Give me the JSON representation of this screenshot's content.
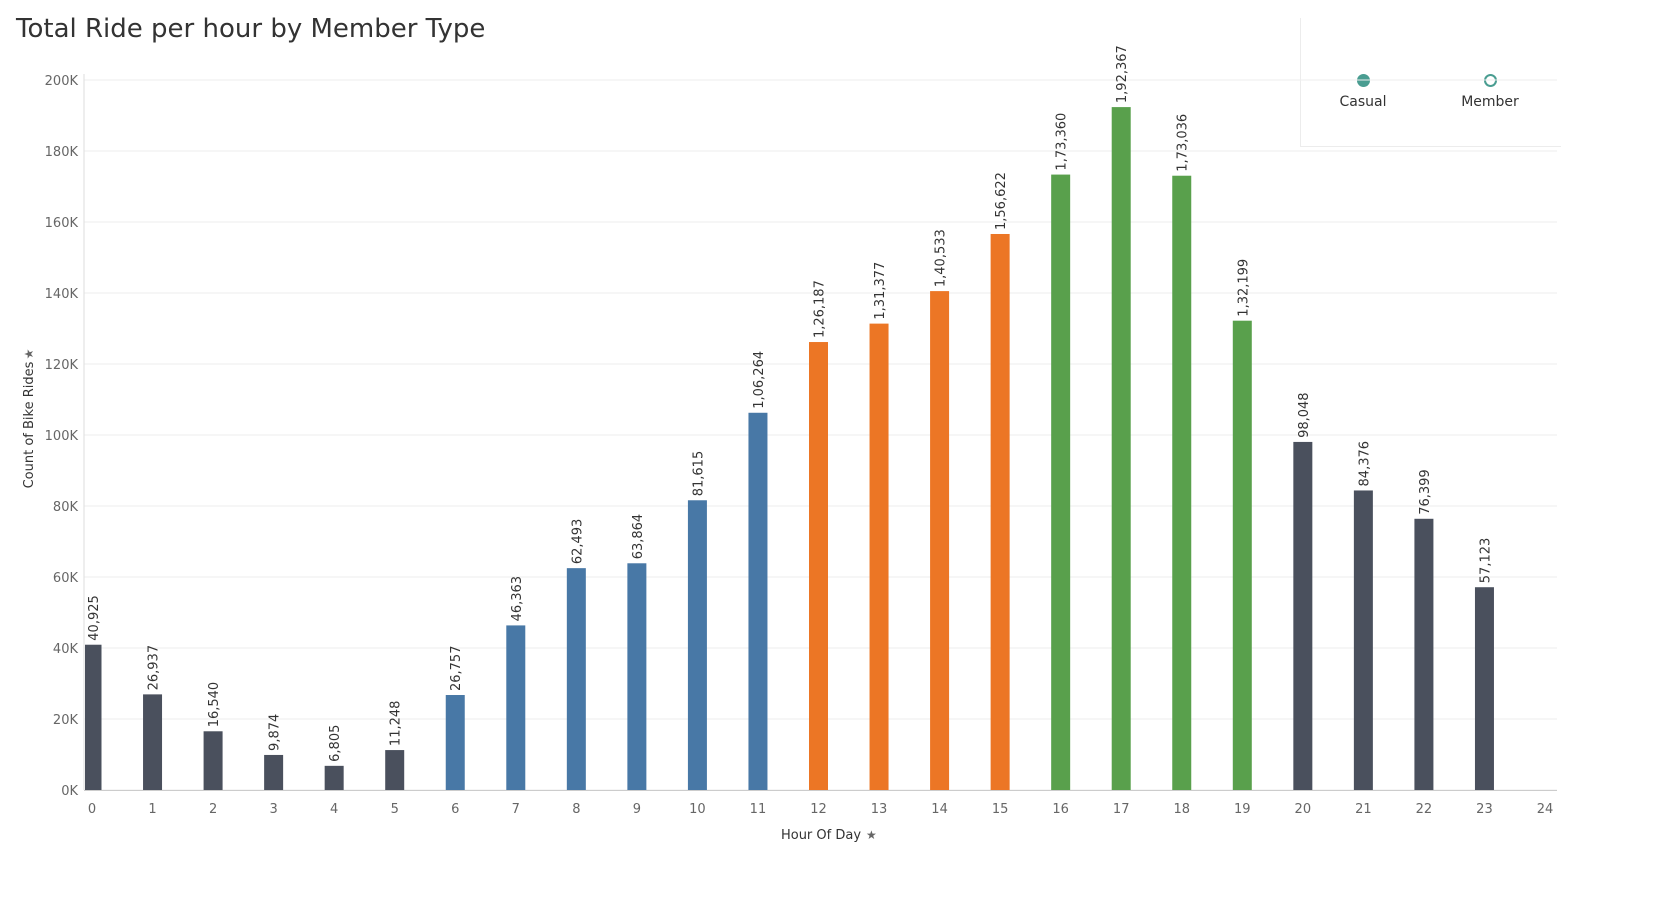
{
  "chart_data": {
    "type": "bar",
    "title": "Total Ride per hour by Member Type",
    "xlabel": "Hour Of Day",
    "ylabel": "Count of Bike Rides",
    "x": [
      0,
      1,
      2,
      3,
      4,
      5,
      6,
      7,
      8,
      9,
      10,
      11,
      12,
      13,
      14,
      15,
      16,
      17,
      18,
      19,
      20,
      21,
      22,
      23
    ],
    "values": [
      40925,
      26937,
      16540,
      9874,
      6805,
      11248,
      26757,
      46363,
      62493,
      63864,
      81615,
      106264,
      126187,
      131377,
      140533,
      156622,
      173360,
      192367,
      173036,
      132199,
      98048,
      84376,
      76399,
      57123
    ],
    "data_labels": [
      "40,925",
      "26,937",
      "16,540",
      "9,874",
      "6,805",
      "11,248",
      "26,757",
      "46,363",
      "62,493",
      "63,864",
      "81,615",
      "1,06,264",
      "1,26,187",
      "1,31,377",
      "1,40,533",
      "1,56,622",
      "1,73,360",
      "1,92,367",
      "1,73,036",
      "1,32,199",
      "98,048",
      "84,376",
      "76,399",
      "57,123"
    ],
    "bar_colors": [
      "#4a505d",
      "#4a505d",
      "#4a505d",
      "#4a505d",
      "#4a505d",
      "#4a505d",
      "#4878a6",
      "#4878a6",
      "#4878a6",
      "#4878a6",
      "#4878a6",
      "#4878a6",
      "#ec7625",
      "#ec7625",
      "#ec7625",
      "#ec7625",
      "#59a04c",
      "#59a04c",
      "#59a04c",
      "#59a04c",
      "#4a505d",
      "#4a505d",
      "#4a505d",
      "#4a505d"
    ],
    "x_ticks": [
      "0",
      "1",
      "2",
      "3",
      "4",
      "5",
      "6",
      "7",
      "8",
      "9",
      "10",
      "11",
      "12",
      "13",
      "14",
      "15",
      "16",
      "17",
      "18",
      "19",
      "20",
      "21",
      "22",
      "23",
      "24"
    ],
    "y_ticks": [
      0,
      20000,
      40000,
      60000,
      80000,
      100000,
      120000,
      140000,
      160000,
      180000,
      200000
    ],
    "y_tick_labels": [
      "0K",
      "20K",
      "40K",
      "60K",
      "80K",
      "100K",
      "120K",
      "140K",
      "160K",
      "180K",
      "200K"
    ],
    "xlim": [
      0,
      24
    ],
    "ylim": [
      0,
      200000
    ],
    "grid": true,
    "legend": {
      "position": "top-right",
      "items": [
        {
          "label": "Casual",
          "style": "filled",
          "color": "#4a9d91"
        },
        {
          "label": "Member",
          "style": "hollow",
          "color": "#4a9d91"
        }
      ]
    },
    "pin_icon": "pin-icon"
  }
}
